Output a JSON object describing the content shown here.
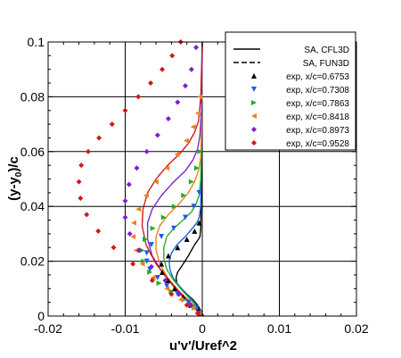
{
  "chart_data": {
    "type": "line",
    "xlabel": "u'v'/Uref^2",
    "ylabel_parts": [
      "(y-y",
      "0",
      ")/c"
    ],
    "xlim": [
      -0.02,
      0.02
    ],
    "ylim": [
      0,
      0.1
    ],
    "x_ticks": [
      -0.02,
      -0.01,
      0,
      0.01,
      0.02
    ],
    "x_tick_labels": [
      "-0.02",
      "-0.01",
      "0",
      "0.01",
      "0.02"
    ],
    "y_ticks": [
      0,
      0.02,
      0.04,
      0.06,
      0.08,
      0.1
    ],
    "y_tick_labels": [
      "0",
      "0.02",
      "0.04",
      "0.06",
      "0.08",
      "0.1"
    ],
    "grid": true,
    "legend_position": "top-right",
    "legend": [
      {
        "label": "SA, CFL3D",
        "style": "solid"
      },
      {
        "label": "SA, FUN3D",
        "style": "dashed"
      },
      {
        "label": "exp, x/c=0.6753",
        "marker": "triangle-up",
        "color": "#000000"
      },
      {
        "label": "exp, x/c=0.7308",
        "marker": "triangle-down",
        "color": "#1a5ce6"
      },
      {
        "label": "exp, x/c=0.7863",
        "marker": "triangle-right",
        "color": "#1fae1f"
      },
      {
        "label": "exp, x/c=0.8418",
        "marker": "triangle-left",
        "color": "#f07f1b"
      },
      {
        "label": "exp, x/c=0.8973",
        "marker": "diamond",
        "color": "#7b1fcf"
      },
      {
        "label": "exp, x/c=0.9528",
        "marker": "diamond",
        "color": "#d01818"
      }
    ],
    "cfd_series": [
      {
        "station": "0.6753",
        "color": "#000000",
        "x": [
          0,
          -0.0002,
          -0.0006,
          -0.0012,
          -0.002,
          -0.0028,
          -0.0033,
          -0.0034,
          -0.0032,
          -0.0027,
          -0.0018,
          -0.001,
          -0.0005,
          -0.0003,
          -0.0002,
          -0.0001,
          0
        ],
        "y": [
          0,
          0.002,
          0.004,
          0.006,
          0.008,
          0.01,
          0.012,
          0.014,
          0.016,
          0.018,
          0.022,
          0.026,
          0.028,
          0.029,
          0.032,
          0.05,
          0.1
        ]
      },
      {
        "station": "0.7308",
        "color": "#1a5ce6",
        "x": [
          0,
          -0.0003,
          -0.001,
          -0.002,
          -0.003,
          -0.0038,
          -0.0042,
          -0.0043,
          -0.004,
          -0.0033,
          -0.0022,
          -0.0013,
          -0.0007,
          -0.0004,
          -0.0002,
          -0.0001,
          0
        ],
        "y": [
          0,
          0.002,
          0.005,
          0.008,
          0.011,
          0.014,
          0.017,
          0.02,
          0.023,
          0.026,
          0.029,
          0.032,
          0.034,
          0.036,
          0.04,
          0.06,
          0.1
        ]
      },
      {
        "station": "0.7863",
        "color": "#1fae1f",
        "x": [
          0,
          -0.0004,
          -0.0012,
          -0.0025,
          -0.0037,
          -0.0046,
          -0.005,
          -0.005,
          -0.0046,
          -0.0037,
          -0.0025,
          -0.0014,
          -0.0008,
          -0.0004,
          -0.0002,
          -0.0001,
          0
        ],
        "y": [
          0,
          0.002,
          0.005,
          0.009,
          0.013,
          0.017,
          0.021,
          0.025,
          0.029,
          0.032,
          0.035,
          0.038,
          0.041,
          0.044,
          0.05,
          0.065,
          0.1
        ]
      },
      {
        "station": "0.8418",
        "color": "#f07f1b",
        "x": [
          0,
          -0.0005,
          -0.0015,
          -0.003,
          -0.0045,
          -0.0055,
          -0.006,
          -0.006,
          -0.0055,
          -0.0044,
          -0.003,
          -0.0018,
          -0.001,
          -0.0005,
          -0.0002,
          -0.0001,
          0
        ],
        "y": [
          0,
          0.002,
          0.005,
          0.009,
          0.014,
          0.019,
          0.024,
          0.029,
          0.033,
          0.037,
          0.041,
          0.045,
          0.049,
          0.053,
          0.058,
          0.07,
          0.1
        ]
      },
      {
        "station": "0.8973",
        "color": "#7b1fcf",
        "x": [
          0,
          -0.0006,
          -0.0018,
          -0.0035,
          -0.0052,
          -0.0065,
          -0.0071,
          -0.0071,
          -0.0065,
          -0.0053,
          -0.0037,
          -0.0022,
          -0.0012,
          -0.0006,
          -0.0003,
          -0.0001,
          0
        ],
        "y": [
          0,
          0.002,
          0.005,
          0.01,
          0.016,
          0.022,
          0.028,
          0.034,
          0.039,
          0.044,
          0.049,
          0.053,
          0.057,
          0.061,
          0.066,
          0.075,
          0.1
        ]
      },
      {
        "station": "0.9528",
        "color": "#d01818",
        "x": [
          0,
          -0.0007,
          -0.002,
          -0.004,
          -0.006,
          -0.0073,
          -0.0078,
          -0.0077,
          -0.0071,
          -0.006,
          -0.0045,
          -0.003,
          -0.0018,
          -0.001,
          -0.0005,
          -0.0002,
          0
        ],
        "y": [
          0,
          0.002,
          0.006,
          0.012,
          0.019,
          0.026,
          0.033,
          0.039,
          0.045,
          0.05,
          0.055,
          0.059,
          0.063,
          0.067,
          0.071,
          0.08,
          0.1
        ]
      }
    ],
    "exp_series": [
      {
        "station": "0.6753",
        "color": "#000000",
        "marker": "triangle-up",
        "x": [
          -0.0001,
          -0.0005,
          -0.0015,
          -0.0025,
          -0.0036,
          -0.0045,
          -0.0052,
          -0.0053,
          -0.0044,
          -0.0032,
          -0.002,
          -0.001,
          -0.0004
        ],
        "y": [
          0.001,
          0.002,
          0.004,
          0.007,
          0.01,
          0.013,
          0.016,
          0.019,
          0.022,
          0.025,
          0.028,
          0.031,
          0.034
        ]
      },
      {
        "station": "0.7308",
        "color": "#1a5ce6",
        "marker": "triangle-down",
        "x": [
          -0.0002,
          -0.0008,
          -0.0018,
          -0.0032,
          -0.0046,
          -0.0058,
          -0.0068,
          -0.0072,
          -0.0072,
          -0.0066,
          -0.0053,
          -0.0037,
          -0.0022,
          -0.0011,
          -0.0004
        ],
        "y": [
          0.001,
          0.003,
          0.005,
          0.008,
          0.011,
          0.014,
          0.017,
          0.02,
          0.023,
          0.026,
          0.029,
          0.032,
          0.036,
          0.04,
          0.045
        ]
      },
      {
        "station": "0.7863",
        "color": "#1fae1f",
        "marker": "triangle-right",
        "x": [
          -0.0003,
          -0.001,
          -0.0024,
          -0.004,
          -0.0056,
          -0.0068,
          -0.0076,
          -0.0078,
          -0.0074,
          -0.0064,
          -0.005,
          -0.0036,
          -0.0024,
          -0.0014,
          -0.0007,
          -0.0003
        ],
        "y": [
          0.001,
          0.003,
          0.006,
          0.009,
          0.012,
          0.016,
          0.02,
          0.024,
          0.028,
          0.032,
          0.036,
          0.04,
          0.044,
          0.049,
          0.054,
          0.06
        ]
      },
      {
        "station": "0.8418",
        "color": "#f07f1b",
        "marker": "triangle-left",
        "x": [
          -0.0004,
          -0.0012,
          -0.0028,
          -0.0046,
          -0.0064,
          -0.0078,
          -0.0086,
          -0.009,
          -0.0089,
          -0.0083,
          -0.0073,
          -0.006,
          -0.0046,
          -0.0033,
          -0.0021,
          -0.0012,
          -0.0006,
          -0.0003
        ],
        "y": [
          0.001,
          0.003,
          0.006,
          0.01,
          0.014,
          0.019,
          0.024,
          0.029,
          0.034,
          0.039,
          0.044,
          0.049,
          0.054,
          0.059,
          0.064,
          0.069,
          0.074,
          0.08
        ]
      },
      {
        "station": "0.8973",
        "color": "#7b1fcf",
        "marker": "diamond",
        "x": [
          -0.0005,
          -0.0015,
          -0.003,
          -0.0048,
          -0.0066,
          -0.0082,
          -0.0094,
          -0.01,
          -0.01,
          -0.0095,
          -0.0085,
          -0.0072,
          -0.0058,
          -0.0044,
          -0.0032,
          -0.0022,
          -0.0014,
          -0.0008
        ],
        "y": [
          0.001,
          0.004,
          0.008,
          0.013,
          0.018,
          0.024,
          0.03,
          0.036,
          0.042,
          0.048,
          0.054,
          0.06,
          0.066,
          0.072,
          0.078,
          0.084,
          0.09,
          0.098
        ]
      },
      {
        "station": "0.9528",
        "color": "#d01818",
        "marker": "diamond",
        "x": [
          -0.0006,
          -0.002,
          -0.004,
          -0.0065,
          -0.009,
          -0.0115,
          -0.0135,
          -0.015,
          -0.0158,
          -0.016,
          -0.0157,
          -0.0148,
          -0.0134,
          -0.0117,
          -0.01,
          -0.0083,
          -0.0067,
          -0.0052,
          -0.0039,
          -0.0028
        ],
        "y": [
          0.001,
          0.004,
          0.008,
          0.013,
          0.019,
          0.025,
          0.031,
          0.037,
          0.043,
          0.049,
          0.055,
          0.06,
          0.065,
          0.07,
          0.075,
          0.08,
          0.085,
          0.09,
          0.095,
          0.1
        ]
      }
    ]
  }
}
